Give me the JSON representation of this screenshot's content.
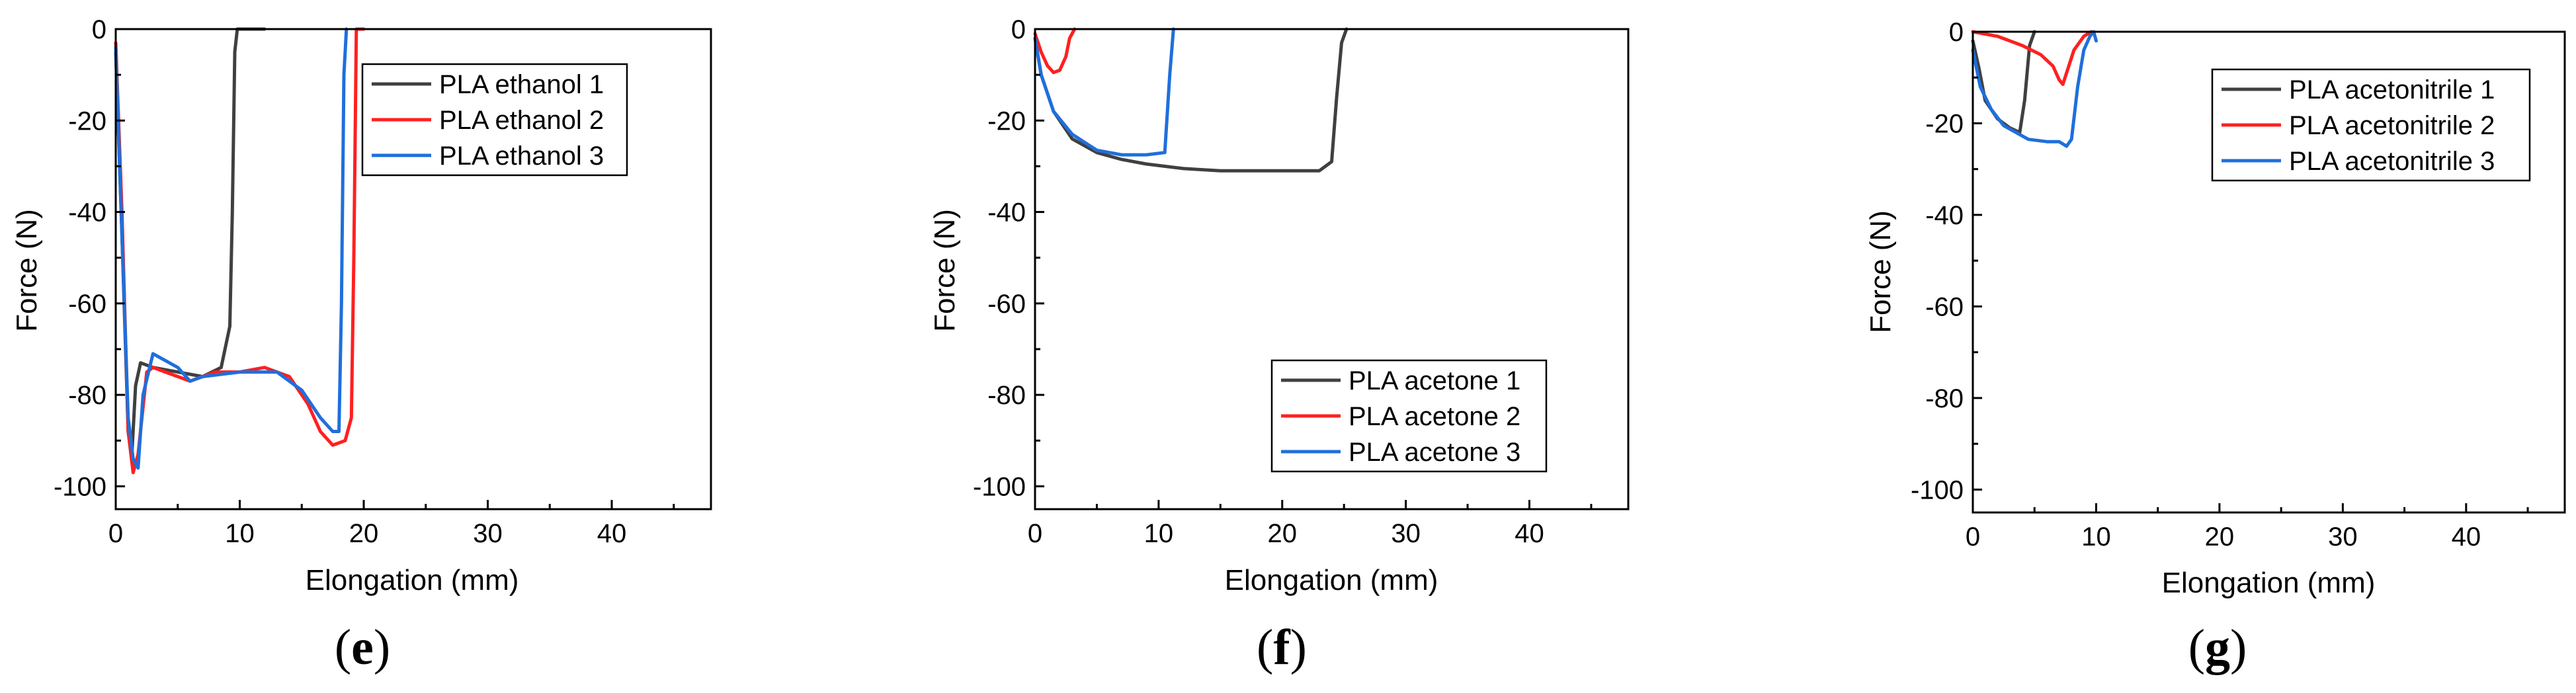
{
  "chart_data": [
    {
      "type": "line",
      "panel": "e",
      "xlabel": "Elongation (mm)",
      "ylabel": "Force (N)",
      "xlim": [
        0,
        48
      ],
      "ylim": [
        -105,
        0
      ],
      "xticks": [
        0,
        10,
        20,
        30,
        40
      ],
      "yticks": [
        0,
        -20,
        -40,
        -60,
        -80,
        -100
      ],
      "legend_position": "top-right",
      "series": [
        {
          "name": "PLA ethanol 1",
          "color": "#404040",
          "x": [
            0,
            0.5,
            1.0,
            1.3,
            1.6,
            2.0,
            3.0,
            5.0,
            7.0,
            8.5,
            9.2,
            9.4,
            9.6,
            9.8,
            12
          ],
          "y": [
            -5,
            -45,
            -88,
            -93,
            -78,
            -73,
            -74,
            -75,
            -76,
            -74,
            -65,
            -40,
            -5,
            0,
            0
          ]
        },
        {
          "name": "PLA ethanol 2",
          "color": "#ff2020",
          "x": [
            0,
            0.5,
            1.0,
            1.4,
            1.8,
            2.5,
            3.0,
            5.0,
            6.0,
            8.0,
            10,
            12,
            14,
            15.5,
            16.5,
            17.5,
            18.5,
            19.0,
            19.2,
            19.4,
            20
          ],
          "y": [
            -3,
            -40,
            -88,
            -97,
            -93,
            -75,
            -74,
            -76,
            -77,
            -75,
            -75,
            -74,
            -76,
            -82,
            -88,
            -91,
            -90,
            -85,
            -50,
            0,
            0
          ]
        },
        {
          "name": "PLA ethanol 3",
          "color": "#1f6fdc",
          "x": [
            0,
            0.5,
            1.0,
            1.4,
            1.8,
            2.2,
            3.0,
            5.0,
            6.0,
            7.0,
            10,
            13,
            15,
            16.5,
            17.5,
            18.0,
            18.2,
            18.4,
            18.6
          ],
          "y": [
            -4,
            -45,
            -85,
            -94,
            -96,
            -80,
            -71,
            -74,
            -77,
            -76,
            -75,
            -75,
            -79,
            -85,
            -88,
            -88,
            -60,
            -10,
            0
          ]
        }
      ]
    },
    {
      "type": "line",
      "panel": "f",
      "xlabel": "Elongation (mm)",
      "ylabel": "Force (N)",
      "xlim": [
        0,
        48
      ],
      "ylim": [
        -105,
        0
      ],
      "xticks": [
        0,
        10,
        20,
        30,
        40
      ],
      "yticks": [
        0,
        -20,
        -40,
        -60,
        -80,
        -100
      ],
      "legend_position": "bottom-right",
      "series": [
        {
          "name": "PLA acetone 1",
          "color": "#404040",
          "x": [
            0,
            0.5,
            1.5,
            3,
            5,
            7,
            9,
            12,
            15,
            18,
            21,
            23,
            24,
            24.4,
            24.8,
            25.2
          ],
          "y": [
            -2,
            -10,
            -18,
            -24,
            -27,
            -28.5,
            -29.5,
            -30.5,
            -31,
            -31,
            -31,
            -31,
            -29,
            -15,
            -3,
            0
          ]
        },
        {
          "name": "PLA acetone 2",
          "color": "#ff2020",
          "x": [
            0,
            0.5,
            1.0,
            1.5,
            2.0,
            2.5,
            2.8,
            3.2
          ],
          "y": [
            -1,
            -5,
            -8,
            -9.5,
            -9,
            -6,
            -2,
            0
          ]
        },
        {
          "name": "PLA acetone 3",
          "color": "#1f6fdc",
          "x": [
            0,
            0.5,
            1.5,
            3,
            5,
            7,
            9,
            10.5,
            10.9,
            11.2
          ],
          "y": [
            -2,
            -10,
            -18,
            -23,
            -26.5,
            -27.5,
            -27.5,
            -27,
            -10,
            0
          ]
        }
      ]
    },
    {
      "type": "line",
      "panel": "g",
      "xlabel": "Elongation (mm)",
      "ylabel": "Force (N)",
      "xlim": [
        0,
        48
      ],
      "ylim": [
        -105,
        0
      ],
      "xticks": [
        0,
        10,
        20,
        30,
        40
      ],
      "yticks": [
        0,
        -20,
        -40,
        -60,
        -80,
        -100
      ],
      "legend_position": "top-right",
      "series": [
        {
          "name": "PLA acetonitrile 1",
          "color": "#404040",
          "x": [
            0,
            0.5,
            1.0,
            2.0,
            3.0,
            3.8,
            4.2,
            4.6,
            5.0
          ],
          "y": [
            -2,
            -8,
            -15,
            -19,
            -21,
            -22,
            -15,
            -3,
            0
          ]
        },
        {
          "name": "PLA acetonitrile 2",
          "color": "#ff2020",
          "x": [
            0,
            2,
            4,
            5.5,
            6.5,
            7.0,
            7.3,
            7.6,
            8.2,
            9.0,
            9.6
          ],
          "y": [
            0,
            -1,
            -3,
            -5,
            -7.5,
            -10.5,
            -11.5,
            -9,
            -4,
            -1,
            0
          ]
        },
        {
          "name": "PLA acetonitrile 3",
          "color": "#1f6fdc",
          "x": [
            0,
            0.6,
            1.5,
            2.5,
            3.5,
            4.5,
            6.0,
            7.0,
            7.6,
            8.0,
            8.5,
            9.0,
            9.5,
            9.8,
            10.0
          ],
          "y": [
            -4,
            -12,
            -17,
            -20.5,
            -22,
            -23.5,
            -24,
            -24,
            -25,
            -23.5,
            -12,
            -4,
            -1,
            0,
            -2
          ]
        }
      ]
    }
  ],
  "panel_labels": [
    {
      "open": "(",
      "letter": "e",
      "close": ")"
    },
    {
      "open": "(",
      "letter": "f",
      "close": ")"
    },
    {
      "open": "(",
      "letter": "g",
      "close": ")"
    }
  ]
}
